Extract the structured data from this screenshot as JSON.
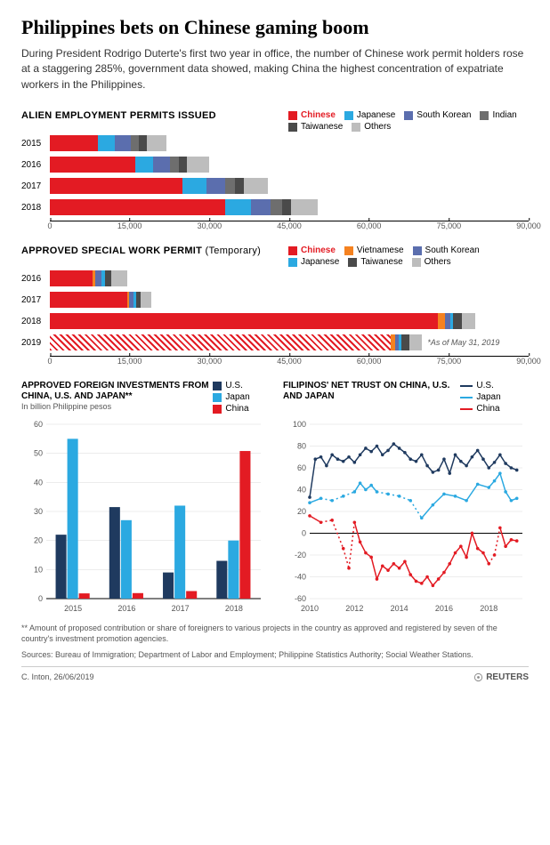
{
  "headline": "Philippines bets on Chinese gaming boom",
  "subhead": "During President Rodrigo Duterte's first two year in office, the number of Chinese work permit holders rose at a staggering 285%, government data showed, making China the highest concentration of expatriate workers in the Philippines.",
  "colors": {
    "chinese": "#e31b23",
    "japanese": "#2ba9e1",
    "south_korean": "#5b6eae",
    "indian": "#6e6e6e",
    "taiwanese": "#4a4a4a",
    "others": "#bdbdbd",
    "vietnamese": "#f58220",
    "us": "#1f3a5f",
    "japan": "#2ba9e1",
    "china": "#e31b23",
    "axis": "#000000",
    "grid": "#d9d9d9"
  },
  "chart1": {
    "title": "ALIEN EMPLOYMENT PERMITS ISSUED",
    "legend": [
      {
        "label": "Chinese",
        "color": "#e31b23",
        "bold": true
      },
      {
        "label": "Japanese",
        "color": "#2ba9e1"
      },
      {
        "label": "South Korean",
        "color": "#5b6eae"
      },
      {
        "label": "Indian",
        "color": "#6e6e6e"
      },
      {
        "label": "Taiwanese",
        "color": "#4a4a4a"
      },
      {
        "label": "Others",
        "color": "#bdbdbd"
      }
    ],
    "xmax": 90000,
    "xticks": [
      0,
      15000,
      30000,
      45000,
      60000,
      75000,
      90000
    ],
    "rows": [
      {
        "year": "2015",
        "segs": [
          {
            "k": "chinese",
            "v": 9000
          },
          {
            "k": "japanese",
            "v": 3200
          },
          {
            "k": "south_korean",
            "v": 3000
          },
          {
            "k": "indian",
            "v": 1600
          },
          {
            "k": "taiwanese",
            "v": 1400
          },
          {
            "k": "others",
            "v": 3800
          }
        ]
      },
      {
        "year": "2016",
        "segs": [
          {
            "k": "chinese",
            "v": 16000
          },
          {
            "k": "japanese",
            "v": 3400
          },
          {
            "k": "south_korean",
            "v": 3200
          },
          {
            "k": "indian",
            "v": 1700
          },
          {
            "k": "taiwanese",
            "v": 1500
          },
          {
            "k": "others",
            "v": 4200
          }
        ]
      },
      {
        "year": "2017",
        "segs": [
          {
            "k": "chinese",
            "v": 25000
          },
          {
            "k": "japanese",
            "v": 4500
          },
          {
            "k": "south_korean",
            "v": 3400
          },
          {
            "k": "indian",
            "v": 1900
          },
          {
            "k": "taiwanese",
            "v": 1600
          },
          {
            "k": "others",
            "v": 4600
          }
        ]
      },
      {
        "year": "2018",
        "segs": [
          {
            "k": "chinese",
            "v": 33000
          },
          {
            "k": "japanese",
            "v": 4800
          },
          {
            "k": "south_korean",
            "v": 3700
          },
          {
            "k": "indian",
            "v": 2100
          },
          {
            "k": "taiwanese",
            "v": 1800
          },
          {
            "k": "others",
            "v": 4900
          }
        ]
      }
    ]
  },
  "chart2": {
    "title": "APPROVED SPECIAL WORK PERMIT",
    "title_suffix": "(Temporary)",
    "legend": [
      {
        "label": "Chinese",
        "color": "#e31b23",
        "bold": true
      },
      {
        "label": "Vietnamese",
        "color": "#f58220"
      },
      {
        "label": "South Korean",
        "color": "#5b6eae"
      },
      {
        "label": "Japanese",
        "color": "#2ba9e1"
      },
      {
        "label": "Taiwanese",
        "color": "#4a4a4a"
      },
      {
        "label": "Others",
        "color": "#bdbdbd"
      }
    ],
    "xmax": 90000,
    "xticks": [
      0,
      15000,
      30000,
      45000,
      60000,
      75000,
      90000
    ],
    "note_2019": "*As of May 31, 2019",
    "rows": [
      {
        "year": "2016",
        "segs": [
          {
            "k": "chinese",
            "v": 8000
          },
          {
            "k": "vietnamese",
            "v": 500
          },
          {
            "k": "south_korean",
            "v": 1200
          },
          {
            "k": "japanese",
            "v": 700
          },
          {
            "k": "taiwanese",
            "v": 1100
          },
          {
            "k": "others",
            "v": 3000
          }
        ]
      },
      {
        "year": "2017",
        "segs": [
          {
            "k": "chinese",
            "v": 14500
          },
          {
            "k": "vietnamese",
            "v": 400
          },
          {
            "k": "south_korean",
            "v": 800
          },
          {
            "k": "japanese",
            "v": 500
          },
          {
            "k": "taiwanese",
            "v": 900
          },
          {
            "k": "others",
            "v": 1900
          }
        ]
      },
      {
        "year": "2018",
        "segs": [
          {
            "k": "chinese",
            "v": 73000
          },
          {
            "k": "vietnamese",
            "v": 1300
          },
          {
            "k": "south_korean",
            "v": 900
          },
          {
            "k": "japanese",
            "v": 600
          },
          {
            "k": "taiwanese",
            "v": 1700
          },
          {
            "k": "others",
            "v": 2500
          }
        ]
      },
      {
        "year": "2019",
        "hatched": true,
        "segs": [
          {
            "k": "chinese",
            "v": 64000
          },
          {
            "k": "vietnamese",
            "v": 900
          },
          {
            "k": "south_korean",
            "v": 700
          },
          {
            "k": "japanese",
            "v": 500
          },
          {
            "k": "taiwanese",
            "v": 1500
          },
          {
            "k": "others",
            "v": 2400
          }
        ]
      }
    ]
  },
  "chart3": {
    "title": "APPROVED FOREIGN INVESTMENTS FROM CHINA, U.S. AND JAPAN**",
    "subtitle": "In billion Philippine pesos",
    "legend_labels": {
      "us": "U.S.",
      "japan": "Japan",
      "china": "China"
    },
    "ylim": [
      0,
      60
    ],
    "ytick_step": 10,
    "categories": [
      "2015",
      "2016",
      "2017",
      "2018"
    ],
    "series": [
      {
        "name": "us",
        "color": "#1f3a5f",
        "values": [
          22,
          31.5,
          9,
          13
        ]
      },
      {
        "name": "japan",
        "color": "#2ba9e1",
        "values": [
          55,
          27,
          32,
          20
        ]
      },
      {
        "name": "china",
        "color": "#e31b23",
        "values": [
          1.8,
          1.9,
          2.6,
          50.8
        ]
      }
    ]
  },
  "chart4": {
    "title": "FILIPINOS' NET TRUST ON CHINA, U.S. AND JAPAN",
    "legend_labels": {
      "us": "U.S.",
      "japan": "Japan",
      "china": "China"
    },
    "ylim": [
      -60,
      100
    ],
    "yticks": [
      -60,
      -40,
      -20,
      0,
      20,
      40,
      60,
      80,
      100
    ],
    "xyears": [
      2010,
      2012,
      2014,
      2016,
      2018
    ],
    "series": [
      {
        "name": "us",
        "color": "#1f3a5f",
        "points": [
          [
            2010.0,
            33
          ],
          [
            2010.25,
            68
          ],
          [
            2010.5,
            70
          ],
          [
            2010.75,
            62
          ],
          [
            2011.0,
            72
          ],
          [
            2011.25,
            68
          ],
          [
            2011.5,
            66
          ],
          [
            2011.75,
            70
          ],
          [
            2012.0,
            65
          ],
          [
            2012.25,
            72
          ],
          [
            2012.5,
            78
          ],
          [
            2012.75,
            75
          ],
          [
            2013.0,
            80
          ],
          [
            2013.25,
            72
          ],
          [
            2013.5,
            76
          ],
          [
            2013.75,
            82
          ],
          [
            2014.0,
            78
          ],
          [
            2014.25,
            74
          ],
          [
            2014.5,
            68
          ],
          [
            2014.75,
            66
          ],
          [
            2015.0,
            72
          ],
          [
            2015.25,
            62
          ],
          [
            2015.5,
            56
          ],
          [
            2015.75,
            58
          ],
          [
            2016.0,
            68
          ],
          [
            2016.25,
            55
          ],
          [
            2016.5,
            72
          ],
          [
            2016.75,
            66
          ],
          [
            2017.0,
            62
          ],
          [
            2017.25,
            70
          ],
          [
            2017.5,
            76
          ],
          [
            2017.75,
            68
          ],
          [
            2018.0,
            60
          ],
          [
            2018.25,
            65
          ],
          [
            2018.5,
            72
          ],
          [
            2018.75,
            64
          ],
          [
            2019.0,
            60
          ],
          [
            2019.25,
            58
          ]
        ]
      },
      {
        "name": "japan",
        "color": "#2ba9e1",
        "points": [
          [
            2010.0,
            28
          ],
          [
            2010.5,
            32
          ],
          [
            2011.0,
            30
          ],
          [
            2011.5,
            34
          ],
          [
            2012.0,
            38
          ],
          [
            2012.25,
            46
          ],
          [
            2012.5,
            40
          ],
          [
            2012.75,
            44
          ],
          [
            2013.0,
            38
          ],
          [
            2013.5,
            36
          ],
          [
            2014.0,
            34
          ],
          [
            2014.5,
            30
          ],
          [
            2015.0,
            14
          ],
          [
            2015.5,
            26
          ],
          [
            2016.0,
            36
          ],
          [
            2016.5,
            34
          ],
          [
            2017.0,
            30
          ],
          [
            2017.5,
            45
          ],
          [
            2018.0,
            42
          ],
          [
            2018.25,
            48
          ],
          [
            2018.5,
            55
          ],
          [
            2018.75,
            38
          ],
          [
            2019.0,
            30
          ],
          [
            2019.25,
            32
          ]
        ],
        "gaps": [
          [
            2010.5,
            2012.0
          ],
          [
            2013.0,
            2015.0
          ]
        ]
      },
      {
        "name": "china",
        "color": "#e31b23",
        "points": [
          [
            2010.0,
            16
          ],
          [
            2010.5,
            10
          ],
          [
            2011.0,
            12
          ],
          [
            2011.5,
            -14
          ],
          [
            2011.75,
            -32
          ],
          [
            2012.0,
            10
          ],
          [
            2012.25,
            -8
          ],
          [
            2012.5,
            -18
          ],
          [
            2012.75,
            -22
          ],
          [
            2013.0,
            -42
          ],
          [
            2013.25,
            -30
          ],
          [
            2013.5,
            -34
          ],
          [
            2013.75,
            -28
          ],
          [
            2014.0,
            -32
          ],
          [
            2014.25,
            -26
          ],
          [
            2014.5,
            -38
          ],
          [
            2014.75,
            -44
          ],
          [
            2015.0,
            -46
          ],
          [
            2015.25,
            -40
          ],
          [
            2015.5,
            -48
          ],
          [
            2015.75,
            -42
          ],
          [
            2016.0,
            -36
          ],
          [
            2016.25,
            -28
          ],
          [
            2016.5,
            -18
          ],
          [
            2016.75,
            -12
          ],
          [
            2017.0,
            -22
          ],
          [
            2017.25,
            0
          ],
          [
            2017.5,
            -14
          ],
          [
            2017.75,
            -18
          ],
          [
            2018.0,
            -28
          ],
          [
            2018.25,
            -20
          ],
          [
            2018.5,
            5
          ],
          [
            2018.75,
            -12
          ],
          [
            2019.0,
            -6
          ],
          [
            2019.25,
            -7
          ]
        ],
        "gaps": [
          [
            2010.5,
            2012.0
          ],
          [
            2018.0,
            2018.5
          ]
        ]
      }
    ]
  },
  "footnote": "** Amount of proposed contribution or share of foreigners to various projects in the country as approved and registered by seven of the country's investment promotion agencies.",
  "sources": "Sources: Bureau of Immigration; Department of Labor and Employment; Philippine Statistics Authority; Social Weather Stations.",
  "byline": "C. Inton, 26/06/2019",
  "brand": "REUTERS"
}
